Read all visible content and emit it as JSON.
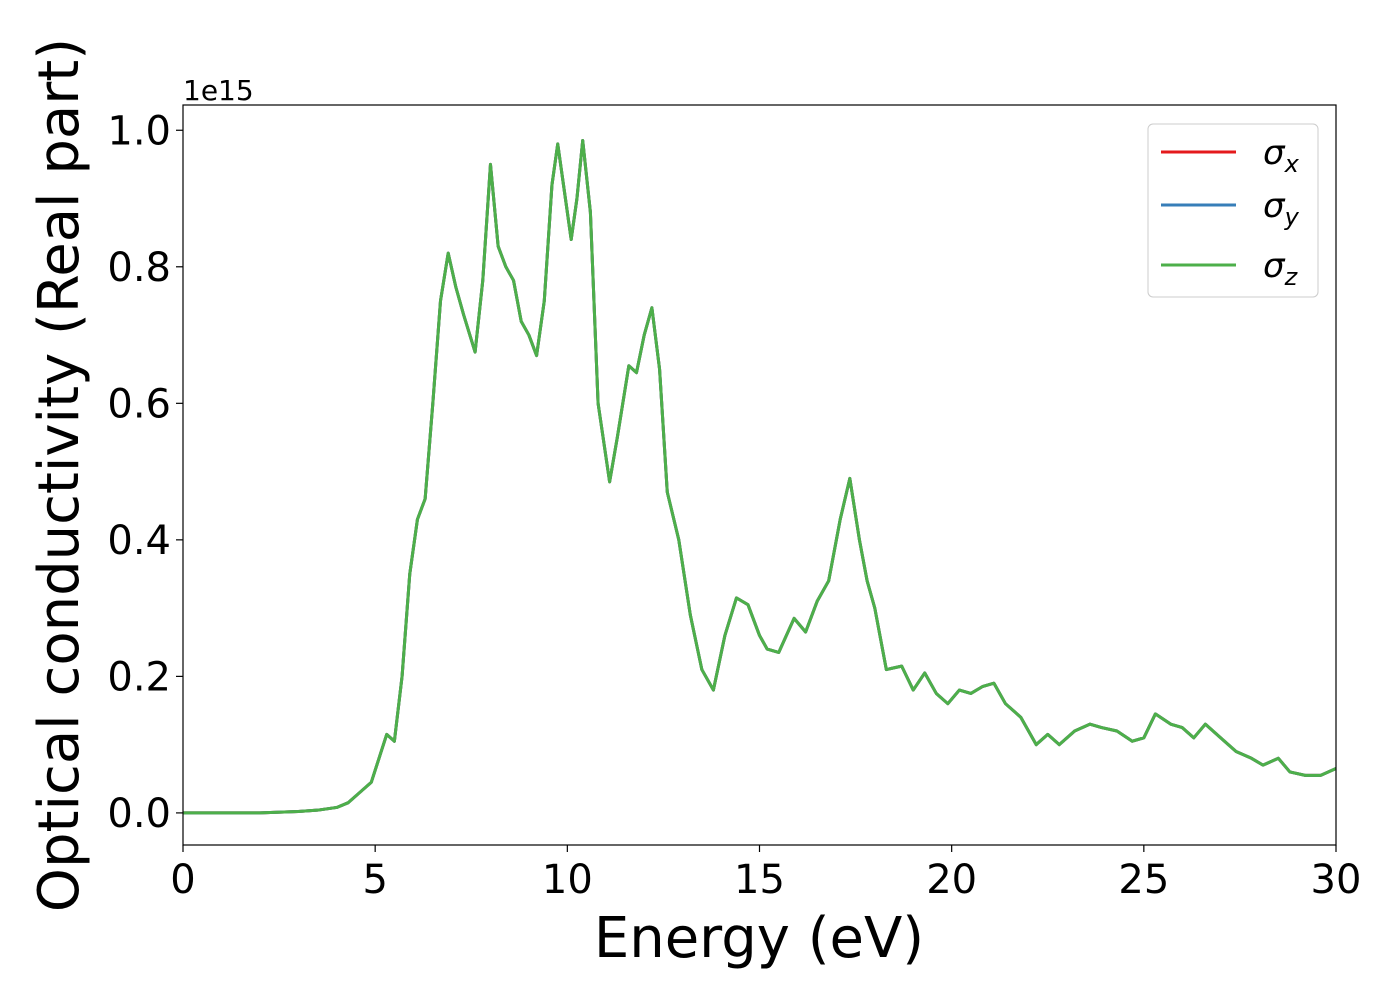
{
  "chart_data": {
    "type": "line",
    "xlabel": "Energy (eV)",
    "ylabel": "Optical conductivity (Real part)",
    "y_offset_label": "1e15",
    "x": [
      0,
      2,
      3,
      3.5,
      4,
      4.3,
      4.6,
      4.9,
      5.1,
      5.3,
      5.5,
      5.7,
      5.9,
      6.1,
      6.3,
      6.5,
      6.7,
      6.9,
      7.1,
      7.3,
      7.6,
      7.8,
      8.0,
      8.2,
      8.4,
      8.6,
      8.8,
      9.0,
      9.2,
      9.4,
      9.6,
      9.75,
      9.9,
      10.1,
      10.25,
      10.4,
      10.6,
      10.8,
      11.1,
      11.3,
      11.6,
      11.8,
      12.0,
      12.2,
      12.4,
      12.6,
      12.9,
      13.2,
      13.5,
      13.8,
      14.1,
      14.4,
      14.7,
      15.0,
      15.2,
      15.5,
      15.9,
      16.2,
      16.5,
      16.8,
      17.1,
      17.35,
      17.6,
      17.8,
      18.0,
      18.3,
      18.7,
      19.0,
      19.3,
      19.6,
      19.9,
      20.2,
      20.5,
      20.8,
      21.1,
      21.4,
      21.8,
      22.2,
      22.5,
      22.8,
      23.2,
      23.6,
      23.9,
      24.3,
      24.7,
      25.0,
      25.3,
      25.7,
      26.0,
      26.3,
      26.6,
      27.0,
      27.4,
      27.8,
      28.1,
      28.5,
      28.8,
      29.2,
      29.6,
      30
    ],
    "series": [
      {
        "name": "σx",
        "color": "#e41a1c",
        "values": [
          0,
          0,
          0.002,
          0.004,
          0.008,
          0.015,
          0.03,
          0.045,
          0.08,
          0.115,
          0.105,
          0.2,
          0.35,
          0.43,
          0.46,
          0.6,
          0.75,
          0.82,
          0.77,
          0.73,
          0.675,
          0.78,
          0.95,
          0.83,
          0.8,
          0.78,
          0.72,
          0.7,
          0.67,
          0.75,
          0.92,
          0.98,
          0.92,
          0.84,
          0.9,
          0.985,
          0.88,
          0.6,
          0.485,
          0.55,
          0.655,
          0.645,
          0.7,
          0.74,
          0.65,
          0.47,
          0.4,
          0.29,
          0.21,
          0.18,
          0.26,
          0.315,
          0.305,
          0.26,
          0.24,
          0.235,
          0.285,
          0.265,
          0.31,
          0.34,
          0.43,
          0.49,
          0.4,
          0.34,
          0.3,
          0.21,
          0.215,
          0.18,
          0.205,
          0.175,
          0.16,
          0.18,
          0.175,
          0.185,
          0.19,
          0.16,
          0.14,
          0.1,
          0.115,
          0.1,
          0.12,
          0.13,
          0.125,
          0.12,
          0.105,
          0.11,
          0.145,
          0.13,
          0.125,
          0.11,
          0.13,
          0.11,
          0.09,
          0.08,
          0.07,
          0.08,
          0.06,
          0.055,
          0.055,
          0.065
        ]
      },
      {
        "name": "σy",
        "color": "#377eb8",
        "values": [
          0,
          0,
          0.002,
          0.004,
          0.008,
          0.015,
          0.03,
          0.045,
          0.08,
          0.115,
          0.105,
          0.2,
          0.35,
          0.43,
          0.46,
          0.6,
          0.75,
          0.82,
          0.77,
          0.73,
          0.675,
          0.78,
          0.95,
          0.83,
          0.8,
          0.78,
          0.72,
          0.7,
          0.67,
          0.75,
          0.92,
          0.98,
          0.92,
          0.84,
          0.9,
          0.985,
          0.88,
          0.6,
          0.485,
          0.55,
          0.655,
          0.645,
          0.7,
          0.74,
          0.65,
          0.47,
          0.4,
          0.29,
          0.21,
          0.18,
          0.26,
          0.315,
          0.305,
          0.26,
          0.24,
          0.235,
          0.285,
          0.265,
          0.31,
          0.34,
          0.43,
          0.49,
          0.4,
          0.34,
          0.3,
          0.21,
          0.215,
          0.18,
          0.205,
          0.175,
          0.16,
          0.18,
          0.175,
          0.185,
          0.19,
          0.16,
          0.14,
          0.1,
          0.115,
          0.1,
          0.12,
          0.13,
          0.125,
          0.12,
          0.105,
          0.11,
          0.145,
          0.13,
          0.125,
          0.11,
          0.13,
          0.11,
          0.09,
          0.08,
          0.07,
          0.08,
          0.06,
          0.055,
          0.055,
          0.065
        ]
      },
      {
        "name": "σz",
        "color": "#4daf4a",
        "values": [
          0,
          0,
          0.002,
          0.004,
          0.008,
          0.015,
          0.03,
          0.045,
          0.08,
          0.115,
          0.105,
          0.2,
          0.35,
          0.43,
          0.46,
          0.6,
          0.75,
          0.82,
          0.77,
          0.73,
          0.675,
          0.78,
          0.95,
          0.83,
          0.8,
          0.78,
          0.72,
          0.7,
          0.67,
          0.75,
          0.92,
          0.98,
          0.92,
          0.84,
          0.9,
          0.985,
          0.88,
          0.6,
          0.485,
          0.55,
          0.655,
          0.645,
          0.7,
          0.74,
          0.65,
          0.47,
          0.4,
          0.29,
          0.21,
          0.18,
          0.26,
          0.315,
          0.305,
          0.26,
          0.24,
          0.235,
          0.285,
          0.265,
          0.31,
          0.34,
          0.43,
          0.49,
          0.4,
          0.34,
          0.3,
          0.21,
          0.215,
          0.18,
          0.205,
          0.175,
          0.16,
          0.18,
          0.175,
          0.185,
          0.19,
          0.16,
          0.14,
          0.1,
          0.115,
          0.1,
          0.12,
          0.13,
          0.125,
          0.12,
          0.105,
          0.11,
          0.145,
          0.13,
          0.125,
          0.11,
          0.13,
          0.11,
          0.09,
          0.08,
          0.07,
          0.08,
          0.06,
          0.055,
          0.055,
          0.065
        ]
      }
    ],
    "xlim": [
      0,
      30
    ],
    "xticks": [
      0,
      5,
      10,
      15,
      20,
      25,
      30
    ],
    "ylim": [
      -0.047,
      1.037
    ],
    "yticks": [
      {
        "value": 0,
        "label": "0.0"
      },
      {
        "value": 0.2,
        "label": "0.2"
      },
      {
        "value": 0.4,
        "label": "0.4"
      },
      {
        "value": 0.6,
        "label": "0.6"
      },
      {
        "value": 0.8,
        "label": "0.8"
      },
      {
        "value": 1.0,
        "label": "1.0"
      }
    ],
    "legend": "upper right",
    "grid": false
  }
}
